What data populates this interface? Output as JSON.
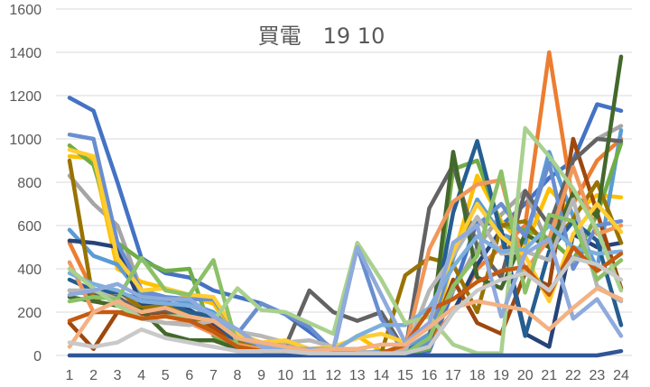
{
  "chart_data": {
    "type": "line",
    "title": "買電　19 10",
    "xlabel": "",
    "ylabel": "",
    "ylim": [
      0,
      1600
    ],
    "yticks": [
      0,
      200,
      400,
      600,
      800,
      1000,
      1200,
      1400,
      1600
    ],
    "x": [
      1,
      2,
      3,
      4,
      5,
      6,
      7,
      8,
      9,
      10,
      11,
      12,
      13,
      14,
      15,
      16,
      17,
      18,
      19,
      20,
      21,
      22,
      23,
      24
    ],
    "grid": "horizontal",
    "legend": "none",
    "series": [
      {
        "color": "#4472C4",
        "values": [
          1190,
          1130,
          800,
          450,
          380,
          360,
          300,
          270,
          240,
          190,
          110,
          30,
          20,
          10,
          10,
          20,
          300,
          620,
          600,
          700,
          820,
          900,
          1160,
          1130
        ]
      },
      {
        "color": "#ED7D31",
        "values": [
          520,
          290,
          250,
          240,
          200,
          180,
          150,
          60,
          30,
          20,
          10,
          10,
          10,
          10,
          10,
          60,
          200,
          400,
          500,
          600,
          1400,
          700,
          900,
          1000
        ]
      },
      {
        "color": "#A5A5A5",
        "values": [
          830,
          700,
          600,
          300,
          260,
          250,
          150,
          50,
          40,
          60,
          30,
          20,
          10,
          10,
          30,
          100,
          300,
          500,
          650,
          760,
          500,
          900,
          1000,
          1060
        ]
      },
      {
        "color": "#FFC000",
        "values": [
          920,
          910,
          400,
          340,
          310,
          270,
          240,
          80,
          50,
          30,
          20,
          20,
          90,
          20,
          20,
          40,
          450,
          830,
          620,
          500,
          770,
          650,
          740,
          730
        ]
      },
      {
        "color": "#5B9BD5",
        "values": [
          580,
          460,
          420,
          280,
          270,
          240,
          200,
          90,
          60,
          40,
          20,
          20,
          10,
          20,
          20,
          100,
          450,
          720,
          560,
          520,
          940,
          640,
          400,
          1040
        ]
      },
      {
        "color": "#70AD47",
        "values": [
          970,
          880,
          520,
          440,
          390,
          400,
          90,
          40,
          20,
          20,
          20,
          10,
          10,
          10,
          10,
          30,
          860,
          900,
          600,
          580,
          540,
          440,
          650,
          980
        ]
      },
      {
        "color": "#264478",
        "values": [
          530,
          520,
          500,
          230,
          230,
          210,
          150,
          60,
          40,
          30,
          20,
          20,
          10,
          10,
          10,
          40,
          200,
          420,
          580,
          100,
          40,
          560,
          500,
          520
        ]
      },
      {
        "color": "#9E480E",
        "values": [
          150,
          30,
          200,
          190,
          200,
          180,
          130,
          40,
          20,
          20,
          20,
          10,
          10,
          10,
          10,
          60,
          350,
          150,
          100,
          380,
          320,
          1000,
          660,
          310
        ]
      },
      {
        "color": "#636363",
        "values": [
          300,
          280,
          270,
          200,
          210,
          170,
          160,
          90,
          50,
          40,
          300,
          200,
          160,
          200,
          20,
          680,
          880,
          500,
          360,
          760,
          600,
          900,
          1000,
          990
        ]
      },
      {
        "color": "#997300",
        "values": [
          900,
          250,
          300,
          220,
          230,
          200,
          100,
          60,
          30,
          20,
          10,
          10,
          10,
          10,
          370,
          450,
          420,
          200,
          600,
          620,
          500,
          630,
          800,
          520
        ]
      },
      {
        "color": "#255E91",
        "values": [
          350,
          300,
          290,
          260,
          250,
          200,
          180,
          40,
          20,
          20,
          10,
          10,
          10,
          10,
          20,
          70,
          660,
          990,
          560,
          90,
          480,
          620,
          530,
          140
        ]
      },
      {
        "color": "#43682B",
        "values": [
          270,
          250,
          230,
          210,
          100,
          70,
          70,
          30,
          20,
          10,
          10,
          10,
          10,
          10,
          10,
          50,
          940,
          360,
          310,
          560,
          500,
          750,
          640,
          1380
        ]
      },
      {
        "color": "#698ED0",
        "values": [
          1020,
          1000,
          520,
          300,
          270,
          260,
          260,
          100,
          240,
          190,
          130,
          20,
          500,
          170,
          10,
          60,
          500,
          600,
          700,
          550,
          890,
          400,
          600,
          620
        ]
      },
      {
        "color": "#F1975A",
        "values": [
          430,
          200,
          250,
          170,
          150,
          150,
          100,
          50,
          30,
          20,
          10,
          10,
          10,
          10,
          30,
          490,
          710,
          790,
          810,
          390,
          540,
          870,
          560,
          600
        ]
      },
      {
        "color": "#B7B7B7",
        "values": [
          300,
          300,
          260,
          170,
          150,
          140,
          160,
          110,
          90,
          60,
          70,
          40,
          20,
          10,
          20,
          300,
          460,
          640,
          470,
          480,
          440,
          720,
          320,
          250
        ]
      },
      {
        "color": "#FFCD33",
        "values": [
          950,
          920,
          450,
          300,
          310,
          280,
          270,
          100,
          60,
          70,
          30,
          40,
          80,
          100,
          60,
          150,
          480,
          700,
          550,
          460,
          250,
          560,
          700,
          570
        ]
      },
      {
        "color": "#7CAFDD",
        "values": [
          380,
          330,
          300,
          250,
          240,
          230,
          190,
          80,
          50,
          30,
          30,
          20,
          90,
          140,
          140,
          220,
          410,
          550,
          480,
          490,
          600,
          500,
          470,
          480
        ]
      },
      {
        "color": "#8CC168",
        "values": [
          250,
          270,
          260,
          450,
          300,
          280,
          440,
          40,
          20,
          10,
          10,
          20,
          10,
          10,
          10,
          80,
          320,
          460,
          850,
          290,
          650,
          620,
          350,
          440
        ]
      },
      {
        "color": "#A9D18E",
        "values": [
          400,
          310,
          230,
          170,
          180,
          180,
          160,
          310,
          210,
          200,
          150,
          100,
          520,
          350,
          150,
          180,
          50,
          10,
          10,
          1050,
          920,
          770,
          580,
          300
        ]
      },
      {
        "color": "#2F5597",
        "values": [
          0,
          0,
          0,
          0,
          0,
          0,
          0,
          0,
          0,
          0,
          0,
          0,
          0,
          0,
          0,
          0,
          0,
          0,
          0,
          0,
          0,
          0,
          0,
          20
        ]
      },
      {
        "color": "#C55A11",
        "values": [
          160,
          200,
          200,
          170,
          180,
          160,
          110,
          40,
          20,
          20,
          20,
          20,
          10,
          10,
          50,
          210,
          260,
          340,
          390,
          410,
          280,
          500,
          390,
          470
        ]
      },
      {
        "color": "#8FAADC",
        "values": [
          280,
          300,
          330,
          270,
          260,
          260,
          180,
          120,
          40,
          20,
          30,
          30,
          500,
          280,
          60,
          150,
          520,
          600,
          180,
          470,
          540,
          170,
          260,
          90
        ]
      },
      {
        "color": "#F4B183",
        "values": [
          40,
          200,
          250,
          200,
          220,
          180,
          160,
          80,
          60,
          40,
          20,
          30,
          30,
          50,
          50,
          130,
          220,
          250,
          230,
          210,
          120,
          220,
          310,
          260
        ]
      },
      {
        "color": "#C9C9C9",
        "values": [
          60,
          40,
          60,
          120,
          80,
          60,
          40,
          20,
          20,
          20,
          10,
          10,
          10,
          10,
          10,
          40,
          200,
          300,
          350,
          380,
          300,
          450,
          420,
          350
        ]
      }
    ]
  }
}
